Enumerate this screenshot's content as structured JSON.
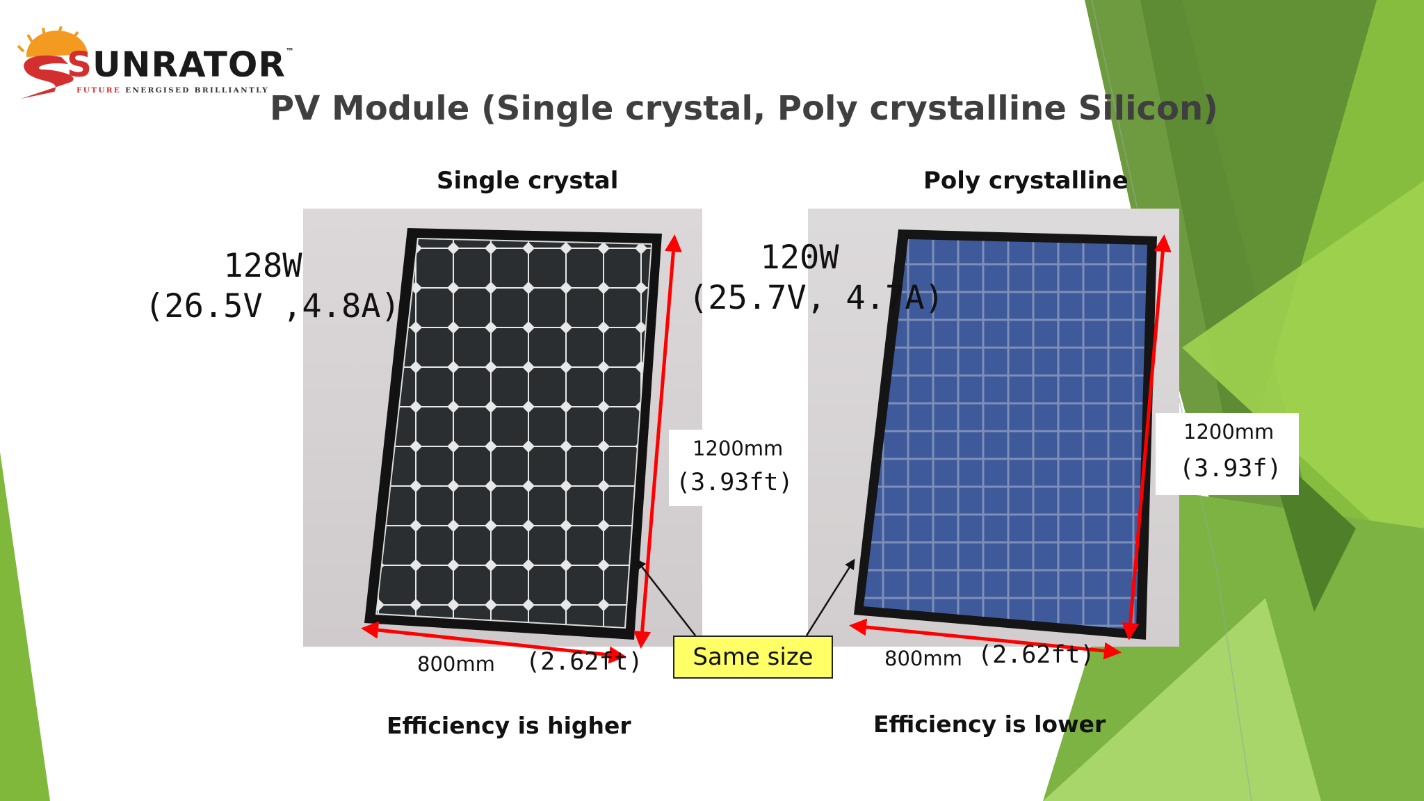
{
  "logo": {
    "brand_first": "S",
    "brand_rest": "UNRATOR",
    "tm": "™",
    "tagline_a": "FUTURE",
    "tagline_b": "ENERGISED BRILLIANTLY"
  },
  "title": "PV Module (Single crystal, Poly crystalline Silicon)",
  "left": {
    "heading": "Single crystal",
    "power": "128W",
    "electrical": "(26.5V ,4.8A)",
    "height_mm": "1200mm",
    "height_ft": "(3.93ft)",
    "width_mm": "800mm",
    "width_ft": "(2.62ft)",
    "efficiency": "Efficiency is higher"
  },
  "right": {
    "heading": "Poly crystalline",
    "power": "120W",
    "electrical": "(25.7V, 4.7A)",
    "height_mm": "1200mm",
    "height_ft": "(3.93f)",
    "width_mm": "800mm",
    "width_ft": "(2.62ft)",
    "efficiency": "Efficiency is lower"
  },
  "same_size": "Same size",
  "colors": {
    "green_dark": "#6b9b3a",
    "green_light": "#8cc63f",
    "title": "#3f3f3f",
    "arrow": "#ff0000",
    "callout": "#ffff66"
  }
}
